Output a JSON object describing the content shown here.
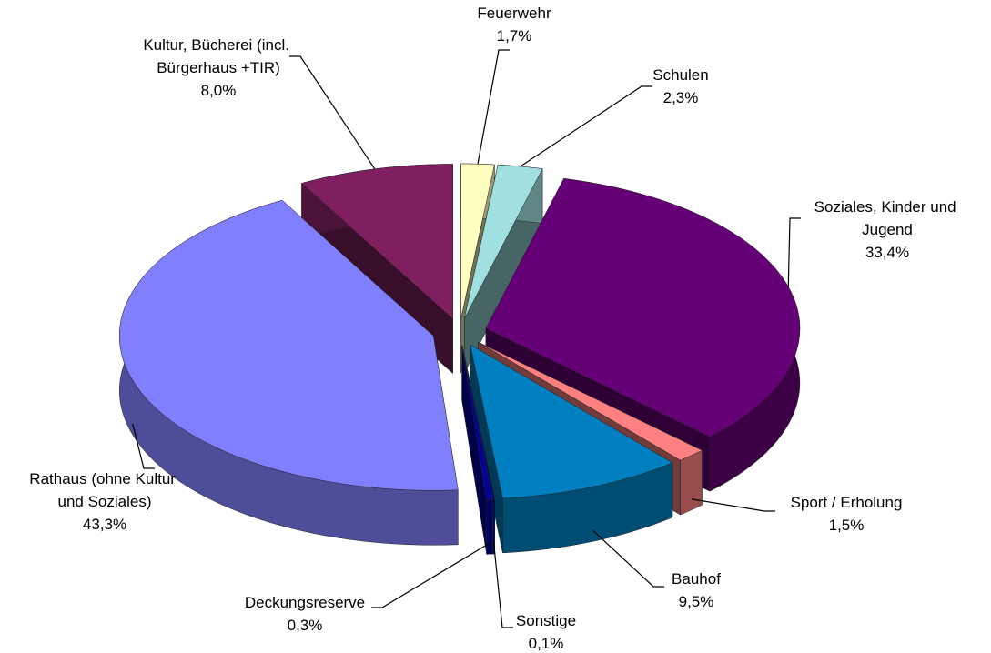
{
  "chart_data": {
    "type": "pie3d",
    "categories": [
      "Feuerwehr",
      "Schulen",
      "Soziales, Kinder und Jugend",
      "Sport / Erholung",
      "Bauhof",
      "Sonstige",
      "Deckungsreserve",
      "Rathaus (ohne Kultur und Soziales)",
      "Kultur, Bücherei (incl. Bürgerhaus +TIR)"
    ],
    "values": [
      1.7,
      2.3,
      33.4,
      1.5,
      9.5,
      0.1,
      0.3,
      43.3,
      8.0
    ],
    "value_labels": [
      "1,7%",
      "2,3%",
      "33,4%",
      "1,5%",
      "9,5%",
      "0,1%",
      "0,3%",
      "43,3%",
      "8,0%"
    ],
    "colors": [
      "#ffffc0",
      "#a0e0e0",
      "#660077",
      "#ff8080",
      "#0080c0",
      "#000080",
      "#0000a0",
      "#8080ff",
      "#7f1f5f"
    ]
  }
}
